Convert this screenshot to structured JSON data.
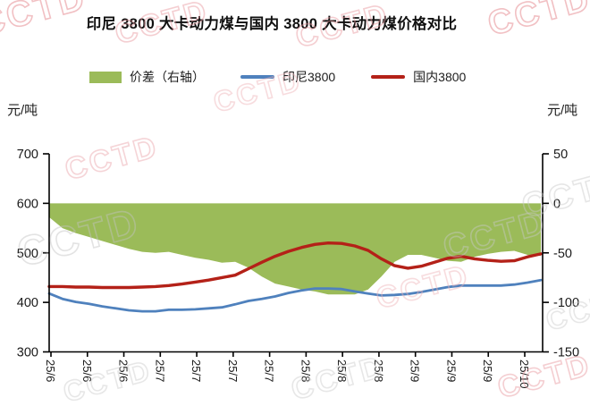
{
  "page": {
    "title": "印尼 3800 大卡动力煤与国内 3800 大卡动力煤价格对比"
  },
  "watermark": {
    "text": "CCTD"
  },
  "legend": [
    {
      "label": "价差（右轴）",
      "type": "area",
      "color": "#9BBB59"
    },
    {
      "label": "印尼3800",
      "type": "line",
      "color": "#4F81BD"
    },
    {
      "label": "国内3800",
      "type": "line",
      "color": "#B42118"
    }
  ],
  "axes": {
    "left_unit": "元/吨",
    "right_unit": "元/吨",
    "left_ticks": [
      700,
      600,
      500,
      400,
      300
    ],
    "right_ticks": [
      50,
      0,
      -50,
      -100,
      -150
    ],
    "left_range": [
      300,
      700
    ],
    "right_range": [
      -150,
      50
    ]
  },
  "chart_data": {
    "type": "combo",
    "title": "印尼 3800 大卡动力煤与国内 3800 大卡动力煤价格对比",
    "xlabel": "",
    "ylabel_left": "元/吨",
    "ylabel_right": "元/吨",
    "left_axis_range": [
      300,
      700
    ],
    "right_axis_range": [
      -150,
      50
    ],
    "grid": false,
    "legend_position": "top",
    "x_tick_labels": [
      "25/6",
      "25/6",
      "25/6",
      "25/7",
      "25/7",
      "25/7",
      "25/7",
      "25/8",
      "25/8",
      "25/8",
      "25/9",
      "25/9",
      "25/9",
      "25/10"
    ],
    "sampling_note": "values estimated from plot at 38 evenly spaced points, Jun 2025 - early Oct 2025",
    "series": [
      {
        "name": "价差（右轴）",
        "type": "area",
        "axis": "right",
        "color": "#9BBB59",
        "baseline": 0,
        "values": [
          -14,
          -25,
          -30,
          -34,
          -38,
          -42,
          -46,
          -49,
          -50,
          -49,
          -52,
          -55,
          -57,
          -60,
          -59,
          -65,
          -74,
          -81,
          -84,
          -87,
          -89,
          -92,
          -92,
          -92,
          -87,
          -74,
          -59,
          -52,
          -52,
          -55,
          -58,
          -59,
          -54,
          -51,
          -49,
          -48,
          -52,
          -53
        ]
      },
      {
        "name": "印尼3800",
        "type": "line",
        "axis": "left",
        "color": "#4F81BD",
        "values": [
          418,
          407,
          401,
          397,
          392,
          388,
          384,
          382,
          382,
          385,
          385,
          386,
          388,
          390,
          396,
          403,
          407,
          412,
          419,
          424,
          428,
          428,
          427,
          422,
          418,
          414,
          415,
          417,
          421,
          426,
          431,
          434,
          434,
          434,
          434,
          436,
          440,
          445
        ]
      },
      {
        "name": "国内3800",
        "type": "line",
        "axis": "left",
        "color": "#B42118",
        "values": [
          432,
          432,
          431,
          431,
          430,
          430,
          430,
          431,
          432,
          434,
          437,
          441,
          445,
          450,
          455,
          468,
          481,
          493,
          503,
          511,
          517,
          520,
          519,
          514,
          505,
          488,
          474,
          469,
          473,
          481,
          489,
          493,
          488,
          485,
          483,
          484,
          492,
          498
        ]
      }
    ]
  }
}
